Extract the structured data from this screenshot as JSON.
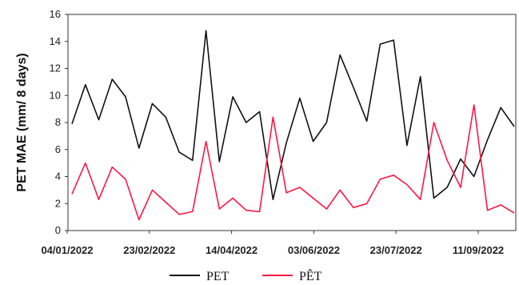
{
  "chart_data": {
    "type": "line",
    "title": "",
    "xlabel": "",
    "ylabel": "PET MAE (mm/ 8 days)",
    "ylim": [
      0,
      16
    ],
    "yticks": [
      0,
      2,
      4,
      6,
      8,
      10,
      12,
      14,
      16
    ],
    "xticks": [
      "04/01/2022",
      "23/02/2022",
      "14/04/2022",
      "03/06/2022",
      "23/07/2022",
      "11/09/2022"
    ],
    "grid": false,
    "legend_position": "bottom-center",
    "series": [
      {
        "name": "PET",
        "color": "#111111",
        "values": [
          7.9,
          10.8,
          8.2,
          11.2,
          9.9,
          6.1,
          9.4,
          8.4,
          5.8,
          5.2,
          14.8,
          5.1,
          9.9,
          8.0,
          8.8,
          2.3,
          6.5,
          9.8,
          6.6,
          8.0,
          13.0,
          10.6,
          8.1,
          13.8,
          14.1,
          6.3,
          11.4,
          2.4,
          3.2,
          5.3,
          4.0,
          6.7,
          9.1,
          7.7
        ]
      },
      {
        "name": "PÊT",
        "color": "#ff1744",
        "values": [
          2.7,
          5.0,
          2.3,
          4.7,
          3.8,
          0.8,
          3.0,
          2.1,
          1.2,
          1.4,
          6.6,
          1.6,
          2.4,
          1.5,
          1.4,
          8.4,
          2.8,
          3.2,
          2.4,
          1.6,
          3.0,
          1.7,
          2.0,
          3.8,
          4.1,
          3.4,
          2.3,
          8.0,
          5.2,
          3.2,
          9.3,
          1.5,
          1.9,
          1.3
        ]
      }
    ]
  }
}
